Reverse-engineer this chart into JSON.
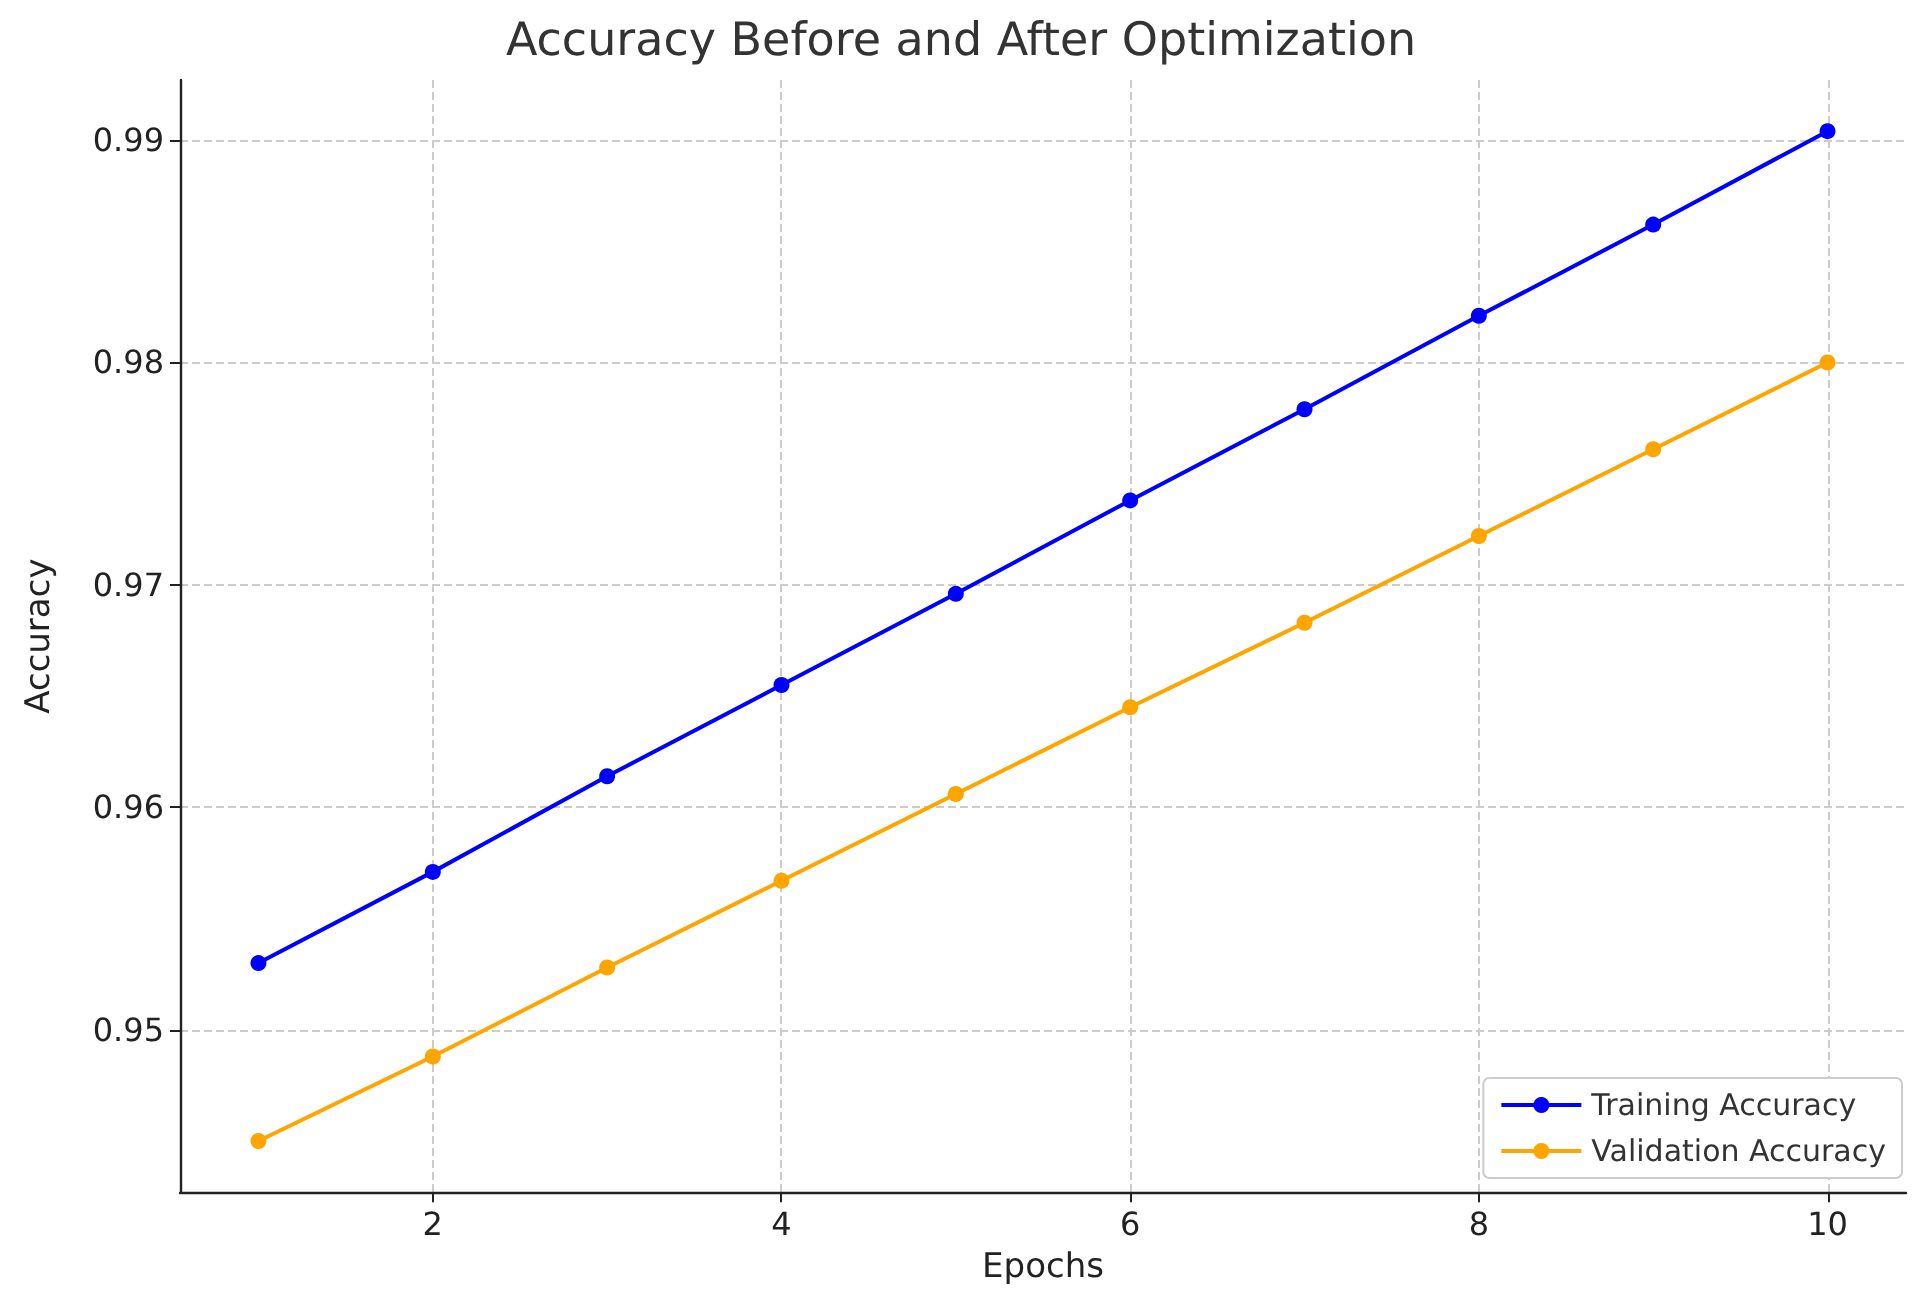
{
  "chart_data": {
    "type": "line",
    "title": "Accuracy Before and After Optimization",
    "xlabel": "Epochs",
    "ylabel": "Accuracy",
    "x": [
      1,
      2,
      3,
      4,
      5,
      6,
      7,
      8,
      9,
      10
    ],
    "series": [
      {
        "name": "Training Accuracy",
        "color": "#0000ff",
        "values": [
          0.953,
          0.9571,
          0.9614,
          0.9655,
          0.9696,
          0.9738,
          0.9779,
          0.9821,
          0.9862,
          0.9904
        ]
      },
      {
        "name": "Validation Accuracy",
        "color": "#ffa500",
        "values": [
          0.945,
          0.9488,
          0.9528,
          0.9567,
          0.9606,
          0.9645,
          0.9683,
          0.9722,
          0.9761,
          0.98
        ]
      }
    ],
    "xlim": [
      0.55,
      10.45
    ],
    "xticks": [
      2,
      4,
      6,
      8,
      10
    ],
    "ylim": [
      0.9427,
      0.9927
    ],
    "yticks": [
      0.95,
      0.96,
      0.97,
      0.98,
      0.99
    ],
    "grid": true,
    "legend": "bottom right",
    "marker": "circle",
    "line_style": "solid"
  }
}
